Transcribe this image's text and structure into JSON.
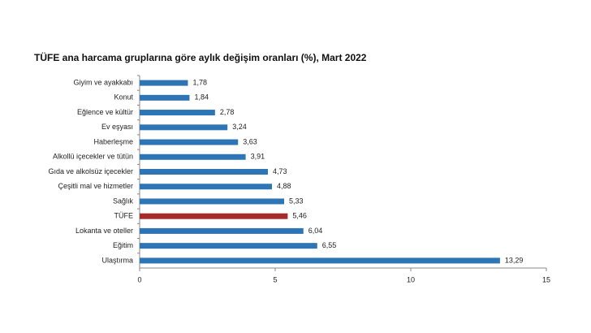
{
  "chart_data": {
    "type": "hbar",
    "title": "TÜFE ana harcama gruplarına göre aylık değişim oranları (%), Mart 2022",
    "categories": [
      "Giyim ve ayakkabı",
      "Konut",
      "Eğlence ve kültür",
      "Ev eşyası",
      "Haberleşme",
      "Alkollü içecekler ve tütün",
      "Gıda ve alkolsüz içecekler",
      "Çeşitli mal ve hizmetler",
      "Sağlık",
      "TÜFE",
      "Lokanta ve oteller",
      "Eğitim",
      "Ulaştırma"
    ],
    "values": [
      1.78,
      1.84,
      2.78,
      3.24,
      3.63,
      3.91,
      4.73,
      4.88,
      5.33,
      5.46,
      6.04,
      6.55,
      13.29
    ],
    "value_labels": [
      "1,78",
      "1,84",
      "2,78",
      "3,24",
      "3,63",
      "3,91",
      "4,73",
      "4,88",
      "5,33",
      "5,46",
      "6,04",
      "6,55",
      "13,29"
    ],
    "colors": [
      "#2e75b6",
      "#2e75b6",
      "#2e75b6",
      "#2e75b6",
      "#2e75b6",
      "#2e75b6",
      "#2e75b6",
      "#2e75b6",
      "#2e75b6",
      "#a52a2a",
      "#2e75b6",
      "#2e75b6",
      "#2e75b6"
    ],
    "xlim": [
      0,
      15
    ],
    "xticks": [
      0,
      5,
      10,
      15
    ]
  }
}
